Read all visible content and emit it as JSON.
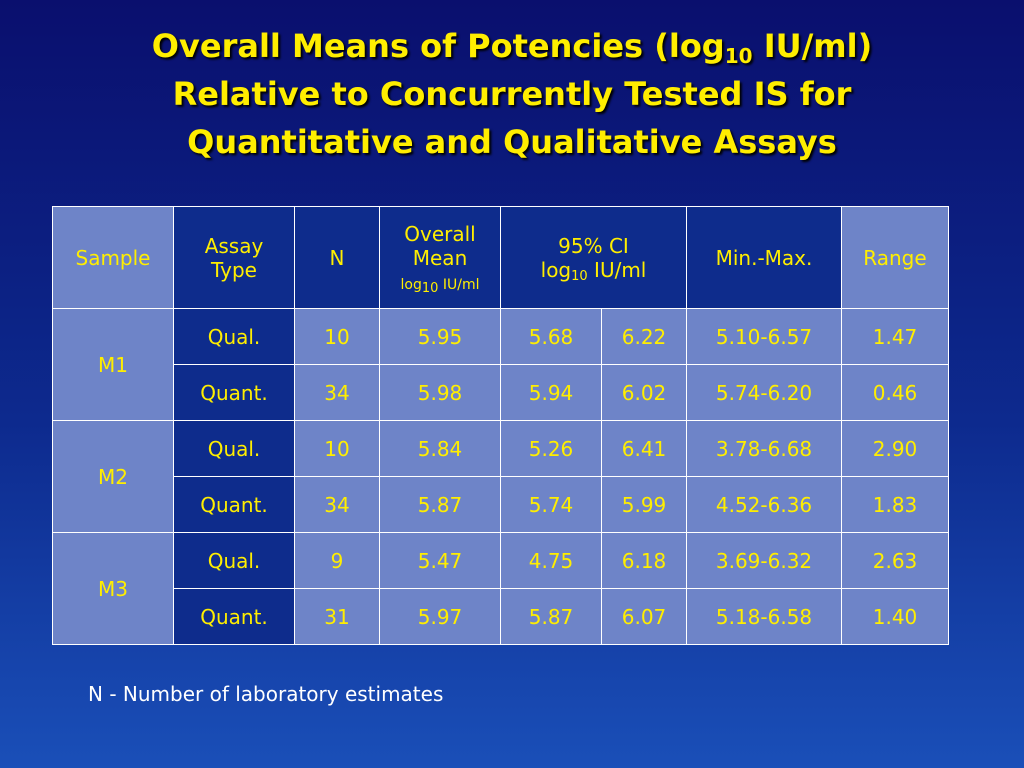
{
  "title": {
    "line1_pre": "Overall Means of Potencies (log",
    "line1_sub": "10",
    "line1_post": " IU/ml)",
    "line2": "Relative to Concurrently Tested IS for",
    "line3": "Quantitative and Qualitative Assays"
  },
  "table": {
    "headers": {
      "sample": "Sample",
      "assay_line1": "Assay",
      "assay_line2": "Type",
      "n": "N",
      "overall_line1": "Overall",
      "overall_line2": "Mean",
      "overall_unit_pre": "log",
      "overall_unit_sub": "10",
      "overall_unit_post": " IU/ml",
      "ci_line1": "95% CI",
      "ci_unit_pre": "log",
      "ci_unit_sub": "10",
      "ci_unit_post": " IU/ml",
      "minmax": "Min.-Max.",
      "range": "Range"
    },
    "samples": [
      {
        "name": "M1",
        "rows": [
          {
            "type": "Qual.",
            "n": "10",
            "mean": "5.95",
            "ci_low": "5.68",
            "ci_high": "6.22",
            "minmax": "5.10-6.57",
            "range": "1.47"
          },
          {
            "type": "Quant.",
            "n": "34",
            "mean": "5.98",
            "ci_low": "5.94",
            "ci_high": "6.02",
            "minmax": "5.74-6.20",
            "range": "0.46"
          }
        ]
      },
      {
        "name": "M2",
        "rows": [
          {
            "type": "Qual.",
            "n": "10",
            "mean": "5.84",
            "ci_low": "5.26",
            "ci_high": "6.41",
            "minmax": "3.78-6.68",
            "range": "2.90"
          },
          {
            "type": "Quant.",
            "n": "34",
            "mean": "5.87",
            "ci_low": "5.74",
            "ci_high": "5.99",
            "minmax": "4.52-6.36",
            "range": "1.83"
          }
        ]
      },
      {
        "name": "M3",
        "rows": [
          {
            "type": "Qual.",
            "n": "9",
            "mean": "5.47",
            "ci_low": "4.75",
            "ci_high": "6.18",
            "minmax": "3.69-6.32",
            "range": "2.63"
          },
          {
            "type": "Quant.",
            "n": "31",
            "mean": "5.97",
            "ci_low": "5.87",
            "ci_high": "6.07",
            "minmax": "5.18-6.58",
            "range": "1.40"
          }
        ]
      }
    ]
  },
  "footnote": "N - Number of laboratory estimates",
  "colors": {
    "background_top": "#0a0f6e",
    "background_bottom": "#1a4fb8",
    "title_text": "#ffee00",
    "cell_light": "#6e84c8",
    "cell_dark": "#0e2c8c",
    "footnote_text": "#ffffff"
  }
}
